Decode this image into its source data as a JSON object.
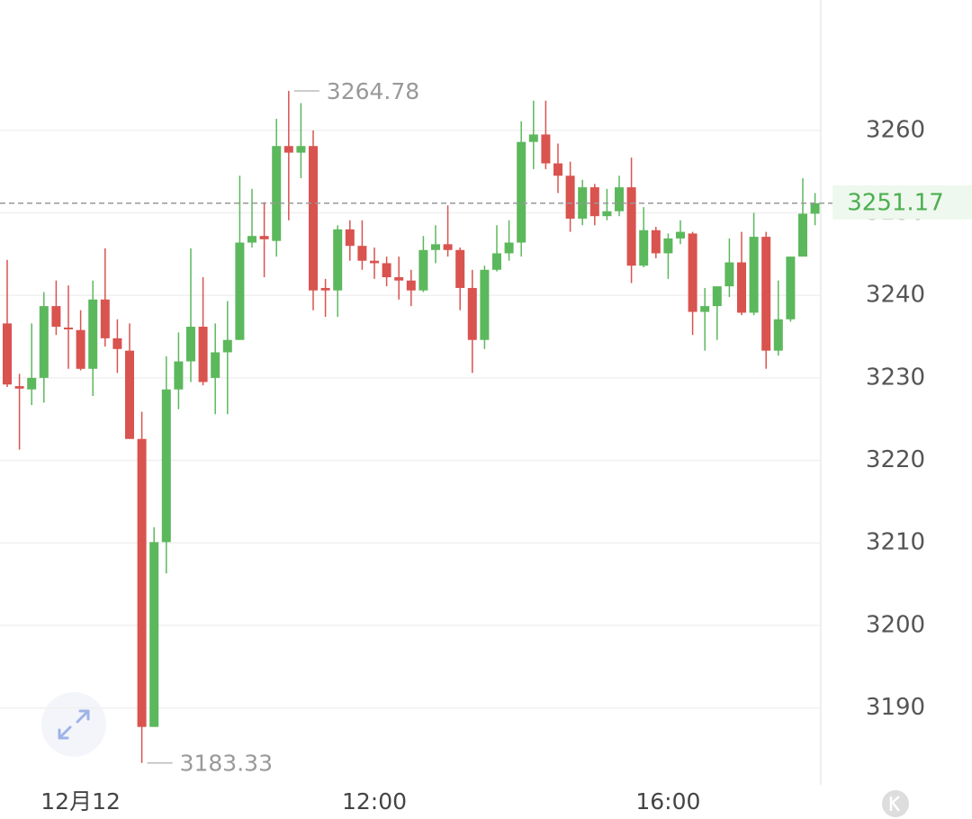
{
  "chart_data": {
    "type": "candlestick",
    "categories": [
      null,
      null,
      null,
      null,
      null,
      null,
      "12月12",
      null,
      null,
      null,
      null,
      null,
      null,
      null,
      null,
      null,
      null,
      null,
      null,
      null,
      null,
      null,
      null,
      null,
      null,
      null,
      null,
      null,
      null,
      null,
      "12:00",
      null,
      null,
      null,
      null,
      null,
      null,
      null,
      null,
      null,
      null,
      null,
      null,
      null,
      null,
      null,
      null,
      null,
      null,
      null,
      null,
      null,
      null,
      null,
      "16:00",
      null,
      null,
      null,
      null,
      null,
      null,
      null,
      null,
      null,
      null,
      null,
      null
    ],
    "series": [
      {
        "name": "open",
        "values": [
          3236.6,
          3229.0,
          3228.6,
          3230.0,
          3238.7,
          3236.1,
          3235.8,
          3231.1,
          3239.5,
          3234.8,
          3233.3,
          3222.6,
          3187.7,
          3210.1,
          3228.6,
          3232.0,
          3236.2,
          3230.0,
          3233.1,
          3234.6,
          3246.4,
          3247.2,
          3246.6,
          3258.1,
          3257.3,
          3258.1,
          3240.9,
          3240.6,
          3248.0,
          3246.0,
          3244.2,
          3243.9,
          3242.2,
          3241.8,
          3240.6,
          3245.5,
          3246.2,
          3245.5,
          3240.9,
          3234.6,
          3243.1,
          3245.1,
          3246.4,
          3258.6,
          3259.5,
          3256.0,
          3254.5,
          3249.3,
          3253.1,
          3249.6,
          3250.2,
          3253.1,
          3243.6,
          3247.9,
          3245.1,
          3246.9,
          3247.5,
          3238.0,
          3238.7,
          3241.1,
          3244.0,
          3237.9,
          3247.1,
          3233.3,
          3237.1,
          3244.7,
          3249.9
        ]
      },
      {
        "name": "high",
        "values": [
          3244.3,
          3230.5,
          3236.6,
          3240.4,
          3241.8,
          3241.2,
          3238.2,
          3241.8,
          3245.7,
          3237.1,
          3236.6,
          3225.9,
          3211.9,
          3232.6,
          3235.5,
          3245.7,
          3242.2,
          3236.6,
          3239.3,
          3254.5,
          3252.9,
          3251.3,
          3261.4,
          3264.78,
          3263.3,
          3260.0,
          3242.0,
          3248.5,
          3249.1,
          3249.1,
          3245.8,
          3244.7,
          3244.7,
          3243.1,
          3247.2,
          3248.5,
          3250.9,
          3245.8,
          3243.1,
          3243.6,
          3248.5,
          3249.1,
          3261.1,
          3263.6,
          3263.6,
          3258.4,
          3256.2,
          3254.0,
          3253.5,
          3252.9,
          3254.5,
          3256.7,
          3250.7,
          3248.3,
          3247.5,
          3249.1,
          3247.7,
          3240.9,
          3241.1,
          3246.9,
          3247.7,
          3250.0,
          3247.7,
          3241.8,
          3244.7,
          3254.2,
          3252.4
        ]
      },
      {
        "name": "low",
        "values": [
          3228.9,
          3221.3,
          3226.7,
          3227.0,
          3235.2,
          3231.1,
          3230.9,
          3227.8,
          3233.8,
          3230.6,
          3222.6,
          3183.33,
          3187.7,
          3206.3,
          3226.2,
          3229.5,
          3229.1,
          3225.6,
          3225.6,
          3234.6,
          3245.8,
          3242.2,
          3244.7,
          3249.1,
          3254.2,
          3238.2,
          3237.4,
          3237.4,
          3244.2,
          3243.1,
          3242.0,
          3241.1,
          3239.5,
          3238.7,
          3240.4,
          3243.9,
          3244.7,
          3238.2,
          3230.6,
          3233.5,
          3242.9,
          3244.2,
          3244.7,
          3255.3,
          3255.3,
          3252.4,
          3247.7,
          3248.5,
          3248.5,
          3249.1,
          3249.6,
          3241.5,
          3243.4,
          3244.5,
          3242.0,
          3246.2,
          3235.2,
          3233.3,
          3234.6,
          3239.8,
          3237.6,
          3237.6,
          3231.1,
          3232.7,
          3236.8,
          3244.7,
          3248.5
        ]
      },
      {
        "name": "close",
        "values": [
          3229.2,
          3228.7,
          3230.0,
          3238.7,
          3236.2,
          3235.9,
          3231.1,
          3239.5,
          3234.8,
          3233.5,
          3222.6,
          3187.7,
          3210.1,
          3228.6,
          3232.0,
          3236.2,
          3229.5,
          3233.1,
          3234.6,
          3246.4,
          3247.2,
          3246.8,
          3258.1,
          3257.3,
          3258.1,
          3240.6,
          3240.6,
          3248.0,
          3246.0,
          3244.2,
          3243.9,
          3242.2,
          3241.8,
          3240.6,
          3245.5,
          3246.2,
          3245.5,
          3240.9,
          3234.6,
          3243.1,
          3245.1,
          3246.4,
          3258.6,
          3259.5,
          3256.0,
          3254.5,
          3249.3,
          3253.1,
          3249.6,
          3250.2,
          3253.1,
          3243.6,
          3247.9,
          3245.1,
          3246.9,
          3247.7,
          3238.0,
          3238.7,
          3241.1,
          3244.0,
          3237.9,
          3247.1,
          3233.3,
          3237.1,
          3244.7,
          3249.9,
          3251.17
        ]
      }
    ],
    "up_color": "#5cb85c",
    "down_color": "#d9534f",
    "ylim": [
      3180.9,
      3275.8
    ],
    "yticks": [
      3190,
      3200,
      3210,
      3220,
      3230,
      3240,
      3250,
      3260
    ],
    "grid": true
  }
}
